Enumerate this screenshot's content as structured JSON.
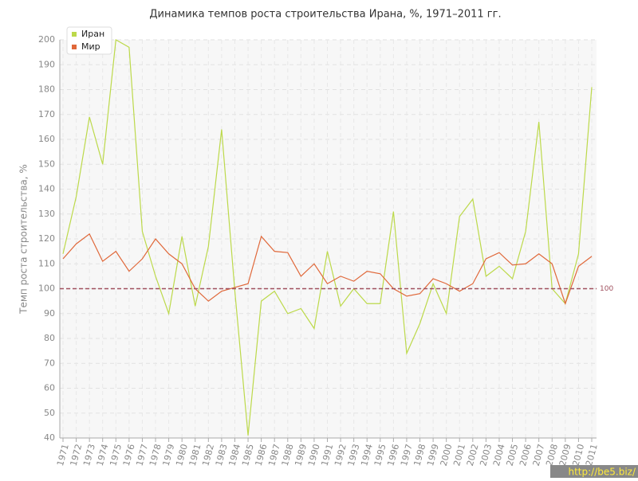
{
  "chart_data": {
    "type": "line",
    "title": "Динамика темпов роста строительства Ирана, %, 1971–2011 гг.",
    "y_label": "Темп роста строительства, %",
    "categories": [
      "1971",
      "1972",
      "1973",
      "1974",
      "1975",
      "1976",
      "1977",
      "1978",
      "1979",
      "1980",
      "1981",
      "1982",
      "1983",
      "1984",
      "1985",
      "1986",
      "1987",
      "1988",
      "1989",
      "1990",
      "1991",
      "1992",
      "1993",
      "1994",
      "1995",
      "1996",
      "1997",
      "1998",
      "1999",
      "2000",
      "2001",
      "2002",
      "2003",
      "2004",
      "2005",
      "2006",
      "2007",
      "2008",
      "2009",
      "2010",
      "2011"
    ],
    "series": [
      {
        "name": "Иран",
        "color": "#bcd94a",
        "values": [
          114,
          137,
          169,
          150,
          200,
          197,
          123,
          105,
          90,
          121,
          93,
          117,
          164,
          99,
          41,
          95,
          99,
          90,
          92,
          84,
          115,
          93,
          100,
          94,
          94,
          131,
          74,
          86,
          102,
          90,
          129,
          136,
          105,
          109,
          104,
          123,
          167,
          100,
          94,
          114,
          181
        ]
      },
      {
        "name": "Мир",
        "color": "#e0683a",
        "values": [
          112,
          118,
          122,
          111,
          115,
          107,
          112,
          120,
          114,
          110,
          100,
          95,
          99,
          100.5,
          102,
          121,
          115,
          114.5,
          105,
          110,
          102,
          105,
          103,
          107,
          106,
          100,
          97,
          98,
          104,
          102,
          99,
          102,
          112,
          114.5,
          109.5,
          110,
          114,
          110,
          94,
          109,
          113
        ]
      }
    ],
    "ylim": [
      40,
      200
    ],
    "yticks": [
      40,
      50,
      60,
      70,
      80,
      90,
      100,
      110,
      120,
      130,
      140,
      150,
      160,
      170,
      180,
      190,
      200
    ],
    "grid": true,
    "legend": "top-left",
    "reference_line": 100,
    "watermark": "http://be5.biz/"
  }
}
